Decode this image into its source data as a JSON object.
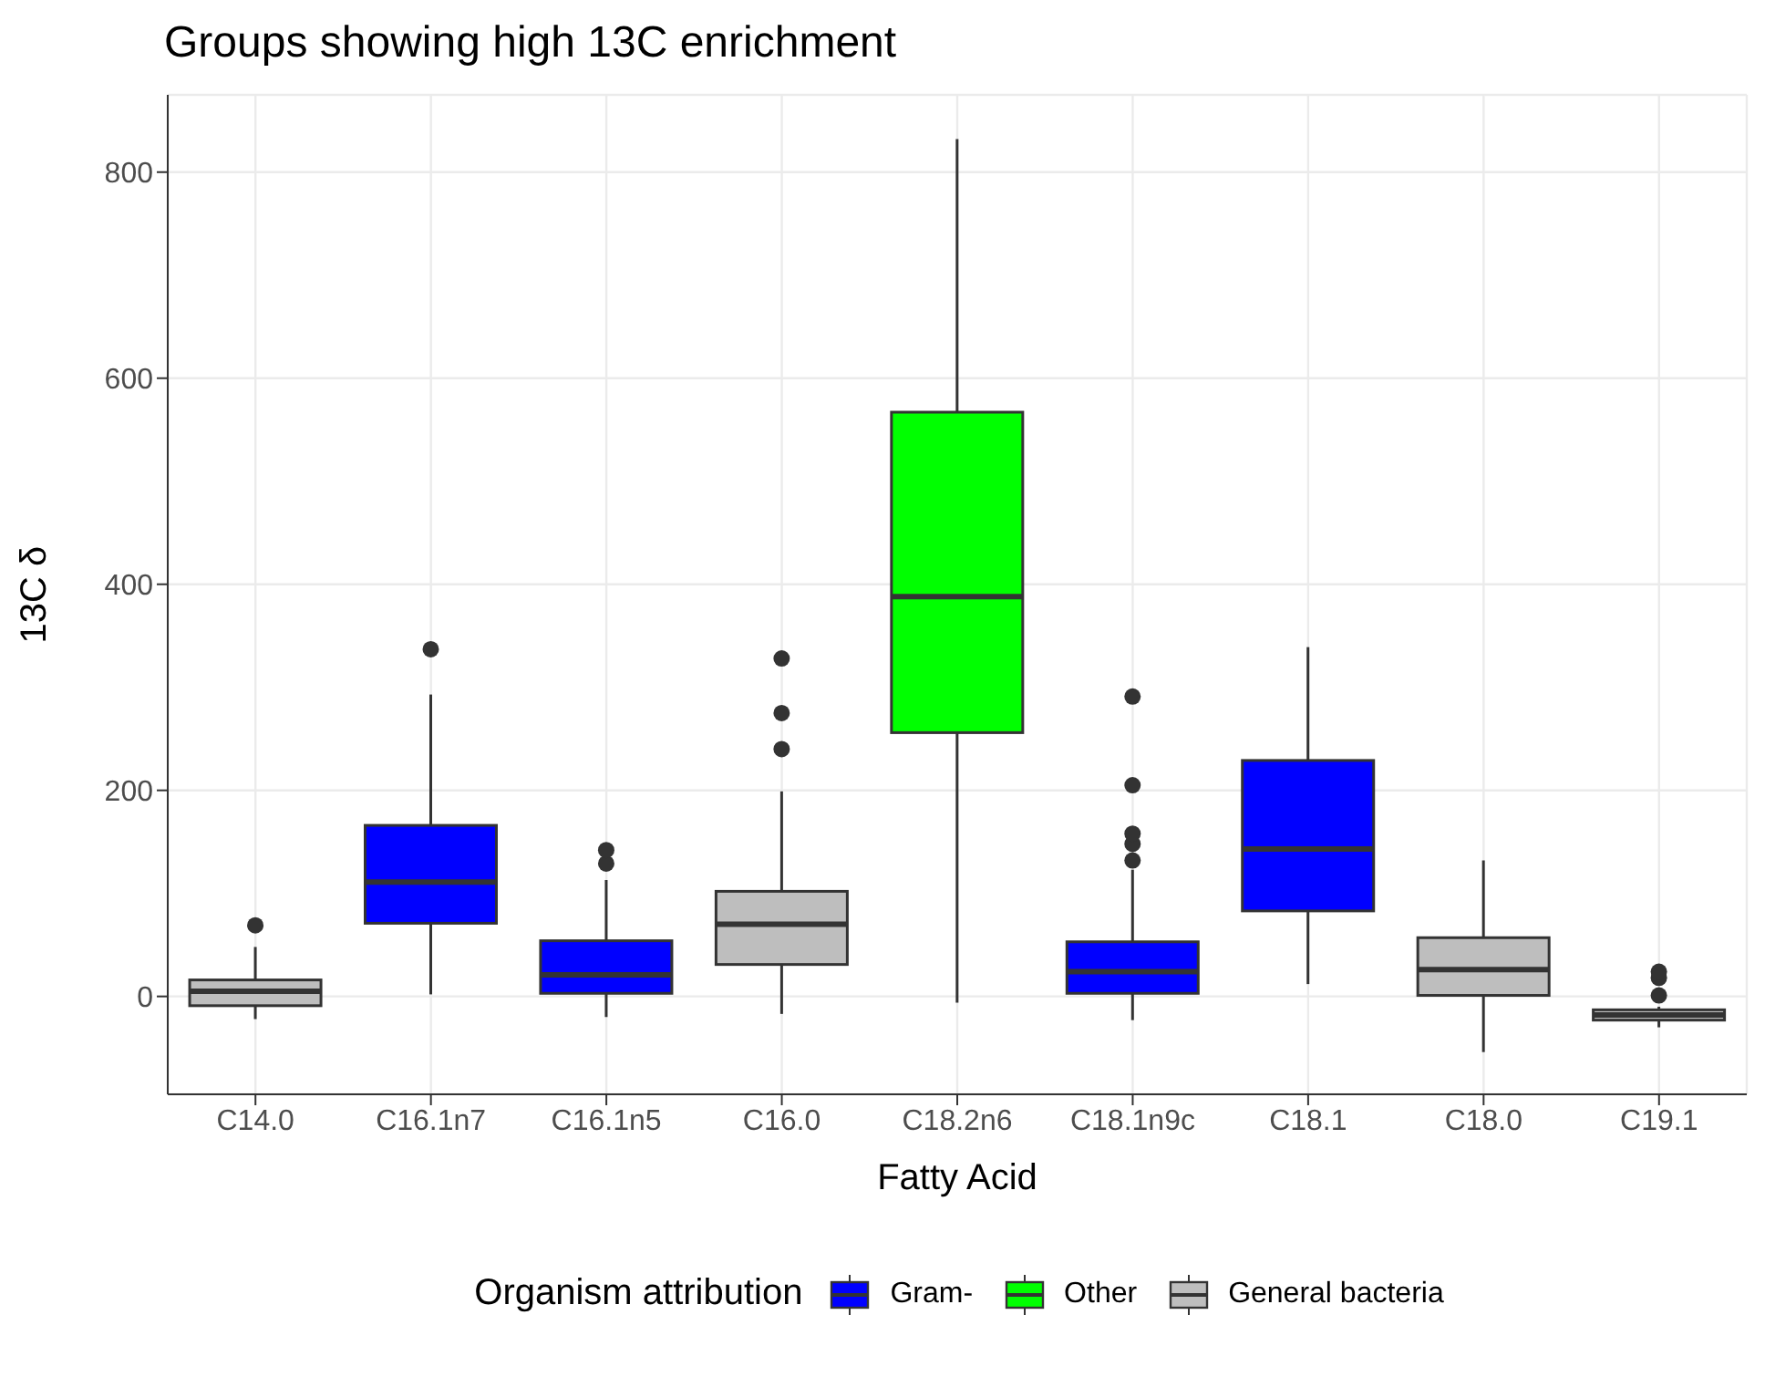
{
  "chart_data": {
    "type": "box",
    "title": "Groups showing high 13C enrichment",
    "xlabel": "Fatty Acid",
    "ylabel": "13C δ",
    "legend_title": "Organism attribution",
    "categories": [
      "C14.0",
      "C16.1n7",
      "C16.1n5",
      "C16.0",
      "C18.2n6",
      "C18.1n9c",
      "C18.1",
      "C18.0",
      "C19.1"
    ],
    "ylim": [
      -95,
      875
    ],
    "yticks": [
      0,
      200,
      400,
      600,
      800
    ],
    "grid": true,
    "legend": "bottom",
    "series": [
      {
        "name": "Gram-",
        "color": "#0000ff",
        "boxes": [
          null,
          {
            "low": 2,
            "q1": 71,
            "median": 111,
            "q3": 166,
            "high": 293,
            "outliers": [
              337
            ]
          },
          {
            "low": -20,
            "q1": 3,
            "median": 21,
            "q3": 54,
            "high": 113,
            "outliers": [
              129,
              142
            ]
          },
          null,
          null,
          {
            "low": -23,
            "q1": 3,
            "median": 24,
            "q3": 53,
            "high": 123,
            "outliers": [
              132,
              148,
              158,
              205,
              291
            ]
          },
          {
            "low": 12,
            "q1": 83,
            "median": 143,
            "q3": 229,
            "high": 339
          },
          null,
          null
        ]
      },
      {
        "name": "Other",
        "color": "#00ff00",
        "boxes": [
          null,
          null,
          null,
          null,
          {
            "low": -6,
            "q1": 256,
            "median": 388,
            "q3": 567,
            "high": 832
          },
          null,
          null,
          null,
          null
        ]
      },
      {
        "name": "General bacteria",
        "color": "#bebebe",
        "boxes": [
          {
            "low": -22,
            "q1": -9,
            "median": 5,
            "q3": 16,
            "high": 48,
            "outliers": [
              69
            ]
          },
          null,
          null,
          {
            "low": -17,
            "q1": 31,
            "median": 70,
            "q3": 102,
            "high": 199,
            "outliers": [
              240,
              275,
              328
            ]
          },
          null,
          null,
          null,
          {
            "low": -54,
            "q1": 1,
            "median": 26,
            "q3": 57,
            "high": 132
          },
          {
            "low": -30,
            "q1": -23,
            "median": -18,
            "q3": -13,
            "high": -10,
            "outliers": [
              1,
              18,
              24
            ]
          }
        ]
      }
    ]
  }
}
